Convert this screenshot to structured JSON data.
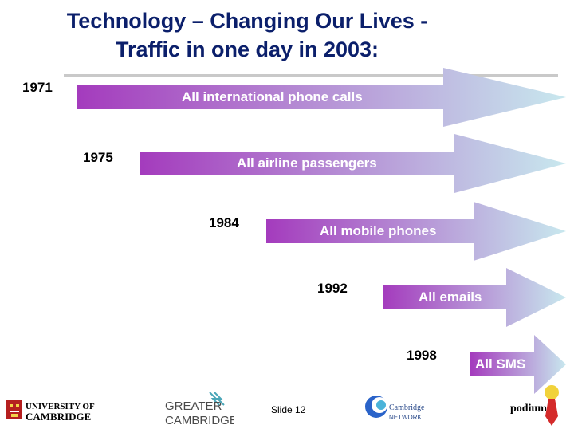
{
  "slide": {
    "title_line1": "Technology – Changing Our Lives -",
    "title_line2": "Traffic in one day in 2003:",
    "slide_number": "Slide 12"
  },
  "timeline": [
    {
      "year": "1971",
      "label": "All international phone calls"
    },
    {
      "year": "1975",
      "label": "All airline passengers"
    },
    {
      "year": "1984",
      "label": "All mobile phones"
    },
    {
      "year": "1992",
      "label": "All emails"
    },
    {
      "year": "1998",
      "label": "All SMS"
    }
  ],
  "colors": {
    "title": "#0b1f6b",
    "arrow_start": "#a43bbd",
    "arrow_end": "#c8e8ee"
  },
  "logos": {
    "cambridge_top": "UNIVERSITY OF",
    "cambridge_bottom": "CAMBRIDGE",
    "greater_top": "GREATER",
    "greater_bottom": "CAMBRIDGE",
    "network_top": "Cambridge",
    "network_bottom": "NETWORK",
    "podium": "podium"
  }
}
